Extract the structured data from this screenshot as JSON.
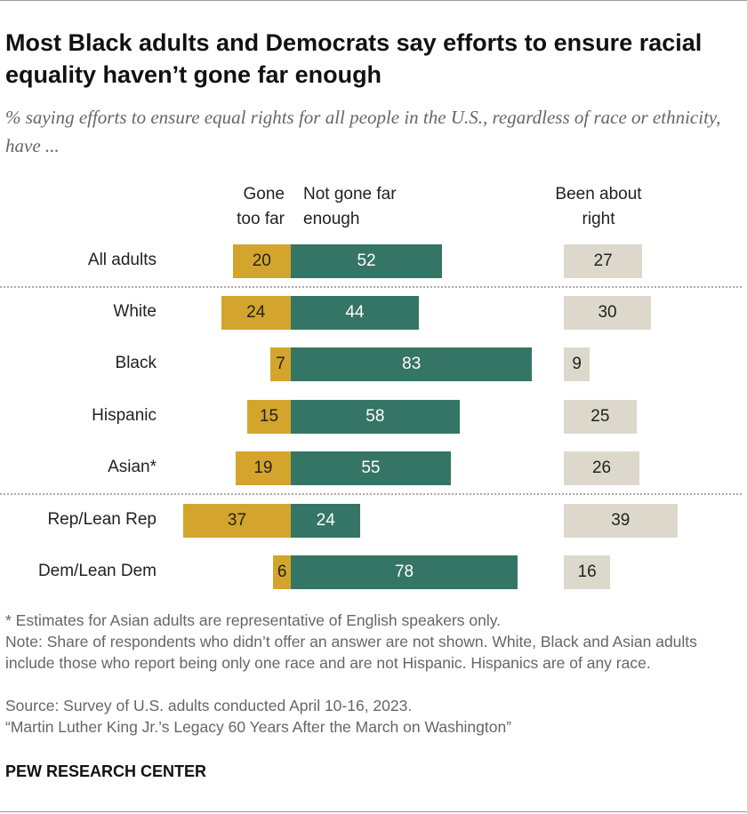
{
  "chart_data": {
    "type": "bar",
    "title": "Most Black adults and Democrats say efforts to ensure racial equality haven’t gone far enough",
    "subtitle": "% saying efforts to ensure equal rights for all people in the U.S., regardless of race or ethnicity, have ...",
    "categories": [
      "All adults",
      "White",
      "Black",
      "Hispanic",
      "Asian*",
      "Rep/Lean Rep",
      "Dem/Lean Dem"
    ],
    "series": [
      {
        "name": "Gone too far",
        "color": "#d4a52c",
        "values": [
          20,
          24,
          7,
          15,
          19,
          37,
          6
        ]
      },
      {
        "name": "Not gone far enough",
        "color": "#357565",
        "values": [
          52,
          44,
          83,
          58,
          55,
          24,
          78
        ]
      },
      {
        "name": "Been about right",
        "color": "#dcd8cb",
        "values": [
          27,
          30,
          9,
          25,
          26,
          39,
          16
        ]
      }
    ],
    "notes": [
      "* Estimates for Asian adults are representative of English speakers only.",
      "Note: Share of respondents who didn’t offer an answer are not shown. White, Black and Asian adults include those who report being only one race and are not Hispanic. Hispanics are of any race.",
      "Source: Survey of U.S. adults conducted April 10-16, 2023.",
      "“Martin Luther King Jr.’s Legacy 60 Years After the March on Washington”"
    ],
    "source_brand": "PEW RESEARCH CENTER"
  }
}
